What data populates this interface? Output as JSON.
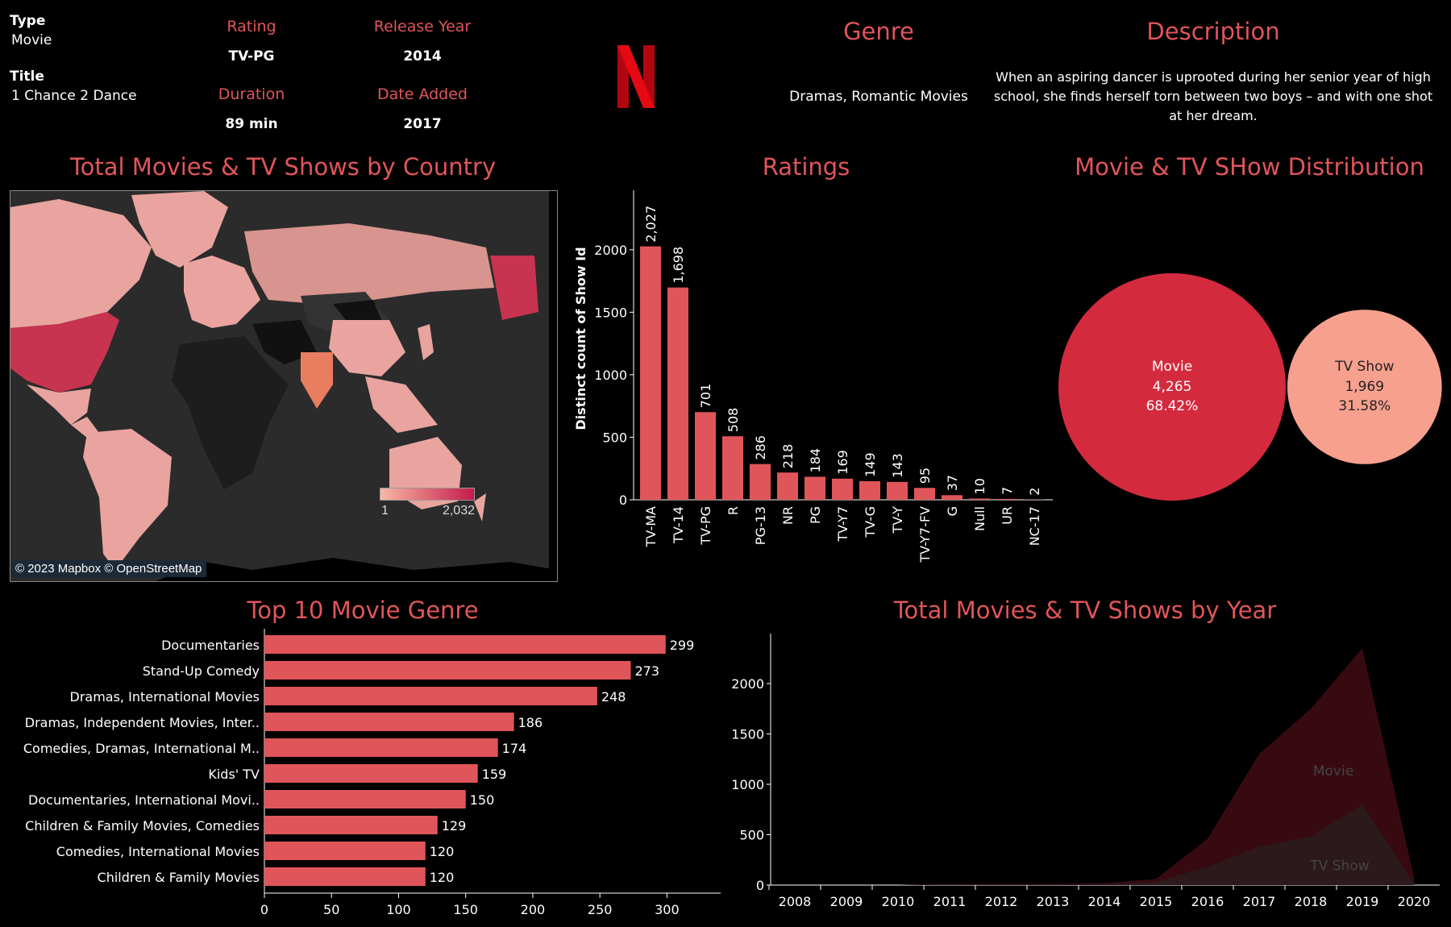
{
  "details": {
    "type_label": "Type",
    "type_value": "Movie",
    "title_label": "Title",
    "title_value": "1 Chance 2 Dance",
    "rating_label": "Rating",
    "rating_value": "TV-PG",
    "release_year_label": "Release Year",
    "release_year_value": "2014",
    "duration_label": "Duration",
    "duration_value": "89 min",
    "date_added_label": "Date Added",
    "date_added_value": "2017",
    "genre_label": "Genre",
    "genre_value": "Dramas, Romantic Movies",
    "description_label": "Description",
    "description_value": "When an aspiring dancer is uprooted during her senior year of high school, she finds herself torn between two boys – and with one shot at her dream."
  },
  "logo": {
    "icon": "netflix-n-logo",
    "color": "#e50914"
  },
  "colors": {
    "accent": "#e0555a",
    "bar": "#e0555a",
    "movie": "#d42a3e",
    "tvshow": "#f7a08e"
  },
  "chart_data": [
    {
      "type": "map",
      "title": "Total Movies & TV Shows by Country",
      "legend_min": "1",
      "legend_max": "2,032",
      "attribution": "© 2023 Mapbox © OpenStreetMap"
    },
    {
      "type": "bar",
      "title": "Ratings",
      "ylabel": "Distinct count of Show Id",
      "categories": [
        "TV-MA",
        "TV-14",
        "TV-PG",
        "R",
        "PG-13",
        "NR",
        "PG",
        "TV-Y7",
        "TV-G",
        "TV-Y",
        "TV-Y7-FV",
        "G",
        "Null",
        "UR",
        "NC-17"
      ],
      "values": [
        2027,
        1698,
        701,
        508,
        286,
        218,
        184,
        169,
        149,
        143,
        95,
        37,
        10,
        7,
        2
      ],
      "value_labels": [
        "2,027",
        "1,698",
        "701",
        "508",
        "286",
        "218",
        "184",
        "169",
        "149",
        "143",
        "95",
        "37",
        "10",
        "7",
        "2"
      ],
      "yticks": [
        "0",
        "500",
        "1000",
        "1500",
        "2000"
      ],
      "ylim": [
        0,
        2450
      ]
    },
    {
      "type": "bubble",
      "title": "Movie & TV SHow Distribution",
      "items": [
        {
          "name": "Movie",
          "count": "4,265",
          "pct": "68.42%",
          "value": 4265
        },
        {
          "name": "TV Show",
          "count": "1,969",
          "pct": "31.58%",
          "value": 1969
        }
      ]
    },
    {
      "type": "bar",
      "orientation": "horizontal",
      "title": "Top 10 Movie Genre",
      "categories": [
        "Documentaries",
        "Stand-Up Comedy",
        "Dramas, International Movies",
        "Dramas, Independent Movies, Inter..",
        "Comedies, Dramas, International M..",
        "Kids' TV",
        "Documentaries, International Movi..",
        "Children & Family Movies, Comedies",
        "Comedies, International Movies",
        "Children & Family Movies"
      ],
      "values": [
        299,
        273,
        248,
        186,
        174,
        159,
        150,
        129,
        120,
        120
      ],
      "xticks": [
        "0",
        "50",
        "100",
        "150",
        "200",
        "250",
        "300"
      ],
      "xlim": [
        0,
        340
      ]
    },
    {
      "type": "area",
      "title": "Total Movies & TV Shows by Year",
      "x": [
        "2008",
        "2009",
        "2010",
        "2011",
        "2012",
        "2013",
        "2014",
        "2015",
        "2016",
        "2017",
        "2018",
        "2019",
        "2020"
      ],
      "yticks": [
        "0",
        "500",
        "1000",
        "1500",
        "2000"
      ],
      "ylim": [
        0,
        2400
      ],
      "series": [
        {
          "name": "TV Show",
          "values": [
            0,
            0,
            0,
            0,
            0,
            0,
            5,
            30,
            180,
            380,
            480,
            800,
            20
          ]
        },
        {
          "name": "Movie",
          "values": [
            0,
            0,
            0,
            10,
            10,
            10,
            20,
            60,
            460,
            1300,
            1750,
            2350,
            80
          ]
        }
      ]
    }
  ]
}
